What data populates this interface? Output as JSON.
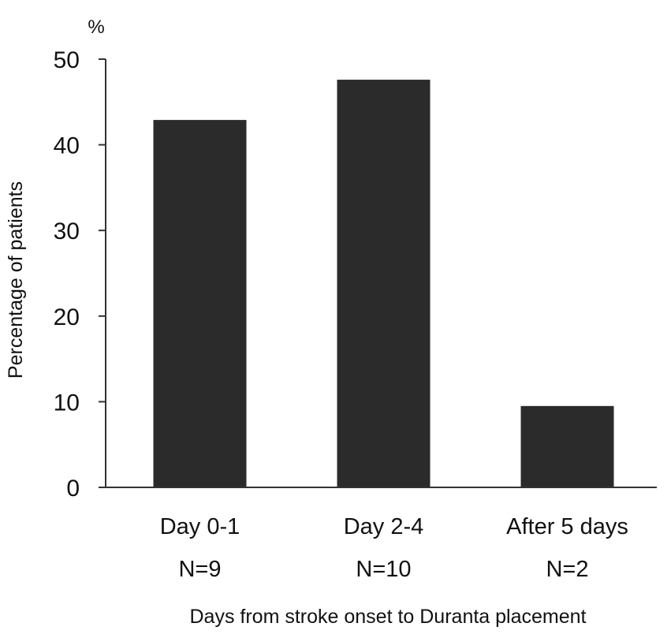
{
  "chart_data": {
    "type": "bar",
    "categories": [
      "Day 0-1",
      "Day 2-4",
      "After 5 days"
    ],
    "sample_sizes": [
      "N=9",
      "N=10",
      "N=2"
    ],
    "values": [
      42.9,
      47.6,
      9.5
    ],
    "xlabel": "Days from stroke onset to Duranta placement",
    "ylabel": "Percentage of patients",
    "y_unit": "%",
    "ylim": [
      0,
      50
    ],
    "yticks": [
      0,
      10,
      20,
      30,
      40,
      50
    ],
    "grid": false,
    "legend": "none",
    "bar_color": "#2b2b2b",
    "axis_color": "#333333"
  }
}
